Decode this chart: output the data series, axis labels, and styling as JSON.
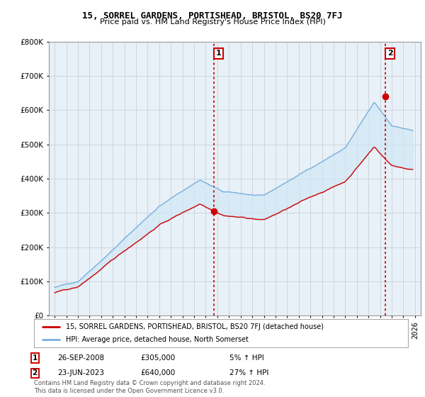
{
  "title": "15, SORREL GARDENS, PORTISHEAD, BRISTOL, BS20 7FJ",
  "subtitle": "Price paid vs. HM Land Registry's House Price Index (HPI)",
  "legend_line1": "15, SORREL GARDENS, PORTISHEAD, BRISTOL, BS20 7FJ (detached house)",
  "legend_line2": "HPI: Average price, detached house, North Somerset",
  "annotation1_date": "26-SEP-2008",
  "annotation1_price": "£305,000",
  "annotation1_hpi": "5% ↑ HPI",
  "annotation2_date": "23-JUN-2023",
  "annotation2_price": "£640,000",
  "annotation2_hpi": "27% ↑ HPI",
  "footnote": "Contains HM Land Registry data © Crown copyright and database right 2024.\nThis data is licensed under the Open Government Licence v3.0.",
  "hpi_color": "#7aafdd",
  "price_color": "#cc0000",
  "fill_color": "#d0e8f5",
  "vline_color": "#cc0000",
  "bg_color": "#ffffff",
  "chart_bg": "#e8f0f8",
  "grid_color": "#c8d0d8",
  "ylim": [
    0,
    800000
  ],
  "yticks": [
    0,
    100000,
    200000,
    300000,
    400000,
    500000,
    600000,
    700000,
    800000
  ],
  "xlim_start": 1994.5,
  "xlim_end": 2026.5,
  "purchase1_x": 2008.73,
  "purchase1_y": 305000,
  "purchase2_x": 2023.47,
  "purchase2_y": 640000,
  "seed": 42
}
